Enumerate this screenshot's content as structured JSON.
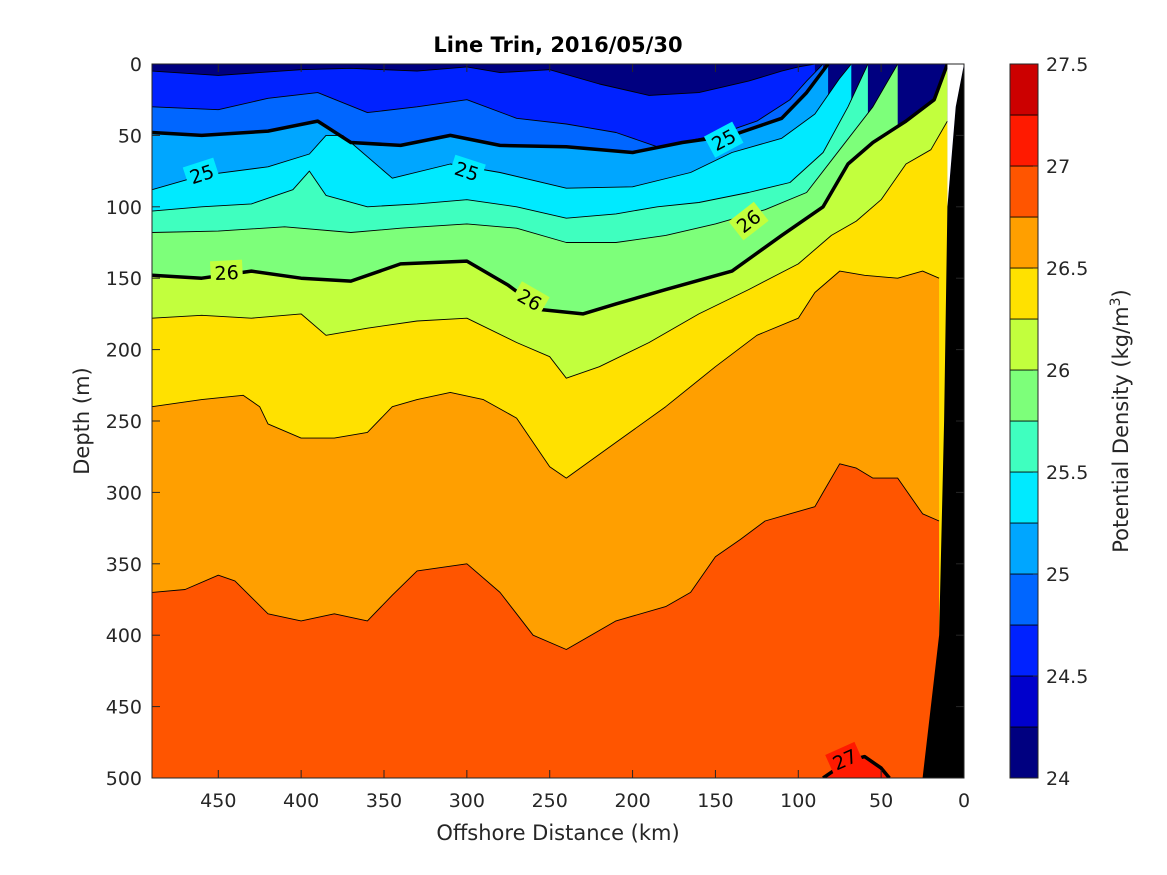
{
  "chart_data": {
    "type": "contour",
    "title": "Line Trin, 2016/05/30",
    "xlabel": "Offshore Distance (km)",
    "ylabel": "Depth (m)",
    "xlim": [
      490,
      0
    ],
    "ylim": [
      0,
      500
    ],
    "x_axis_reversed": true,
    "y_axis_reversed": true,
    "x_ticks": [
      "450",
      "400",
      "350",
      "300",
      "250",
      "200",
      "150",
      "100",
      "50",
      "0"
    ],
    "x_tick_values": [
      450,
      400,
      350,
      300,
      250,
      200,
      150,
      100,
      50,
      0
    ],
    "y_ticks": [
      "0",
      "50",
      "100",
      "150",
      "200",
      "250",
      "300",
      "350",
      "400",
      "450",
      "500"
    ],
    "y_tick_values": [
      0,
      50,
      100,
      150,
      200,
      250,
      300,
      350,
      400,
      450,
      500
    ],
    "colorbar": {
      "label": "Potential Density (kg/m",
      "label_superscript": "3",
      "label_suffix": ")",
      "range": [
        24,
        27.5
      ],
      "ticks": [
        "24",
        "24.5",
        "25",
        "25.5",
        "26",
        "26.5",
        "27",
        "27.5"
      ],
      "tick_values": [
        24,
        24.5,
        25,
        25.5,
        26,
        26.5,
        27,
        27.5
      ],
      "levels": [
        24,
        24.25,
        24.5,
        24.75,
        25,
        25.25,
        25.5,
        25.75,
        26,
        26.25,
        26.5,
        26.75,
        27,
        27.25,
        27.5
      ],
      "colors": [
        "#000080",
        "#0000cc",
        "#0022ff",
        "#0066ff",
        "#00a6ff",
        "#00eaff",
        "#3fffbf",
        "#7dff7a",
        "#c2ff3d",
        "#ffe100",
        "#ff9f00",
        "#ff5500",
        "#ff1a00",
        "#cc0000"
      ]
    },
    "contour_label_values": [
      "25",
      "25",
      "25",
      "26",
      "26",
      "26",
      "27"
    ],
    "isopycnals": [
      {
        "level": 24.5,
        "x": [
          490,
          450,
          400,
          370,
          330,
          300,
          280,
          250,
          220,
          190,
          160,
          130,
          110,
          100,
          90
        ],
        "y": [
          5,
          8,
          4,
          3,
          5,
          2,
          6,
          4,
          14,
          22,
          20,
          12,
          5,
          2,
          0
        ]
      },
      {
        "level": 24.75,
        "x": [
          490,
          450,
          420,
          390,
          360,
          330,
          300,
          270,
          240,
          210,
          185,
          150,
          125,
          105,
          95,
          85
        ],
        "y": [
          30,
          32,
          24,
          20,
          34,
          30,
          25,
          38,
          42,
          48,
          58,
          50,
          40,
          25,
          12,
          0
        ]
      },
      {
        "level": 25.0,
        "x": [
          490,
          460,
          420,
          390,
          370,
          340,
          310,
          280,
          240,
          200,
          170,
          140,
          110,
          95,
          82
        ],
        "y": [
          48,
          50,
          47,
          40,
          55,
          57,
          50,
          57,
          58,
          62,
          55,
          50,
          38,
          20,
          0
        ]
      },
      {
        "level": 25.25,
        "x": [
          490,
          460,
          420,
          395,
          385,
          375,
          345,
          310,
          280,
          240,
          200,
          165,
          140,
          110,
          90,
          75,
          68
        ],
        "y": [
          88,
          78,
          72,
          63,
          50,
          50,
          80,
          70,
          76,
          87,
          86,
          76,
          62,
          52,
          35,
          10,
          0
        ]
      },
      {
        "level": 25.5,
        "x": [
          490,
          460,
          430,
          405,
          395,
          385,
          360,
          330,
          300,
          270,
          240,
          210,
          185,
          160,
          130,
          105,
          85,
          70,
          58
        ],
        "y": [
          103,
          100,
          98,
          88,
          75,
          92,
          100,
          98,
          95,
          100,
          108,
          105,
          100,
          97,
          90,
          83,
          62,
          30,
          0
        ]
      },
      {
        "level": 25.75,
        "x": [
          490,
          450,
          410,
          370,
          340,
          300,
          270,
          240,
          210,
          180,
          150,
          120,
          95,
          75,
          55,
          40
        ],
        "y": [
          118,
          117,
          114,
          118,
          115,
          112,
          115,
          125,
          125,
          120,
          112,
          102,
          90,
          60,
          30,
          0
        ]
      },
      {
        "level": 26.0,
        "x": [
          490,
          460,
          430,
          400,
          370,
          340,
          300,
          275,
          255,
          230,
          210,
          180,
          140,
          110,
          85,
          70,
          55,
          35,
          18,
          10
        ],
        "y": [
          148,
          150,
          145,
          150,
          152,
          140,
          138,
          155,
          172,
          175,
          168,
          158,
          145,
          120,
          100,
          70,
          55,
          40,
          25,
          0
        ]
      },
      {
        "level": 26.25,
        "x": [
          490,
          460,
          430,
          400,
          385,
          360,
          330,
          300,
          270,
          250,
          240,
          220,
          190,
          160,
          130,
          100,
          80,
          65,
          50,
          35,
          20,
          10
        ],
        "y": [
          178,
          176,
          178,
          175,
          190,
          185,
          180,
          178,
          195,
          205,
          220,
          212,
          195,
          175,
          158,
          140,
          120,
          110,
          95,
          70,
          60,
          40
        ]
      },
      {
        "level": 26.5,
        "x": [
          490,
          460,
          435,
          425,
          420,
          400,
          380,
          360,
          345,
          330,
          310,
          290,
          270,
          250,
          240,
          210,
          180,
          150,
          125,
          100,
          90,
          75,
          60,
          40,
          25,
          15
        ],
        "y": [
          240,
          235,
          232,
          240,
          252,
          262,
          262,
          258,
          240,
          235,
          230,
          235,
          248,
          282,
          290,
          265,
          240,
          212,
          190,
          178,
          160,
          145,
          148,
          150,
          145,
          150
        ]
      },
      {
        "level": 26.75,
        "x": [
          490,
          470,
          450,
          440,
          420,
          400,
          380,
          360,
          345,
          330,
          300,
          280,
          270,
          260,
          240,
          210,
          180,
          165,
          150,
          135,
          120,
          105,
          90,
          85,
          75,
          65,
          55,
          40,
          25,
          15
        ],
        "y": [
          370,
          368,
          358,
          362,
          385,
          390,
          385,
          390,
          372,
          355,
          350,
          370,
          385,
          400,
          410,
          390,
          380,
          370,
          345,
          333,
          320,
          315,
          310,
          300,
          280,
          283,
          290,
          290,
          315,
          320
        ]
      },
      {
        "level": 27.0,
        "x": [
          85,
          70,
          60,
          50,
          45
        ],
        "y": [
          500,
          488,
          485,
          493,
          500
        ]
      }
    ],
    "topography": {
      "label": "bottom",
      "x": [
        0,
        0,
        10,
        20,
        25,
        0
      ],
      "y": [
        0,
        500,
        500,
        500,
        500,
        0
      ],
      "shelf_edge_x": [
        25,
        15,
        12,
        10,
        5,
        0
      ],
      "shelf_edge_y": [
        500,
        400,
        250,
        100,
        30,
        0
      ]
    }
  }
}
